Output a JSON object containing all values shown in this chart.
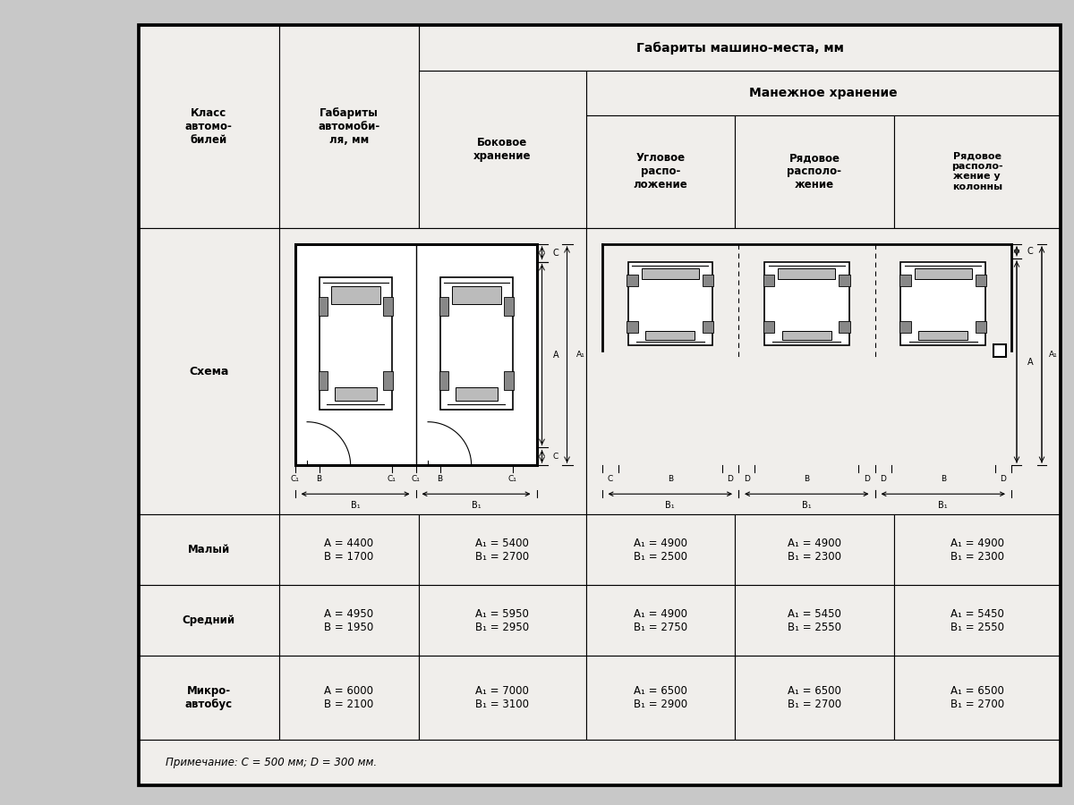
{
  "title": "Габариты машино-места, мм",
  "subtitle": "Манежное хранение",
  "header_col0": "Класс\nавтомо-\nбилей",
  "header_col1": "Габариты\nавтомоби-\nля, мм",
  "header_col2": "Боковое\nхранение",
  "header_col3": "Угловое\nраспо-\nложение",
  "header_col4": "Рядовое\nрасполо-\nжение",
  "header_col5": "Рядовое\nрасполо-\nжение у\nколонны",
  "schema_label": "Схема",
  "rows": [
    {
      "class": "Малый",
      "dims": "A = 4400\nB = 1700",
      "col2": "A₁ = 5400\nB₁ = 2700",
      "col3": "A₁ = 4900\nB₁ = 2500",
      "col4": "A₁ = 4900\nB₁ = 2300",
      "col5": "A₁ = 4900\nB₁ = 2300"
    },
    {
      "class": "Средний",
      "dims": "A = 4950\nB = 1950",
      "col2": "A₁ = 5950\nB₁ = 2950",
      "col3": "A₁ = 4900\nB₁ = 2750",
      "col4": "A₁ = 5450\nB₁ = 2550",
      "col5": "A₁ = 5450\nB₁ = 2550"
    },
    {
      "class": "Микро-\nавтобус",
      "dims": "A = 6000\nB = 2100",
      "col2": "A₁ = 7000\nB₁ = 3100",
      "col3": "A₁ = 6500\nB₁ = 2900",
      "col4": "A₁ = 6500\nB₁ = 2700",
      "col5": "A₁ = 6500\nB₁ = 2700"
    }
  ],
  "note": "Примечание: C = 500 мм; D = 300 мм.",
  "bg_color": "#c8c8c8",
  "cell_bg": "#f0eeeb",
  "header_bg": "#f0eeeb"
}
